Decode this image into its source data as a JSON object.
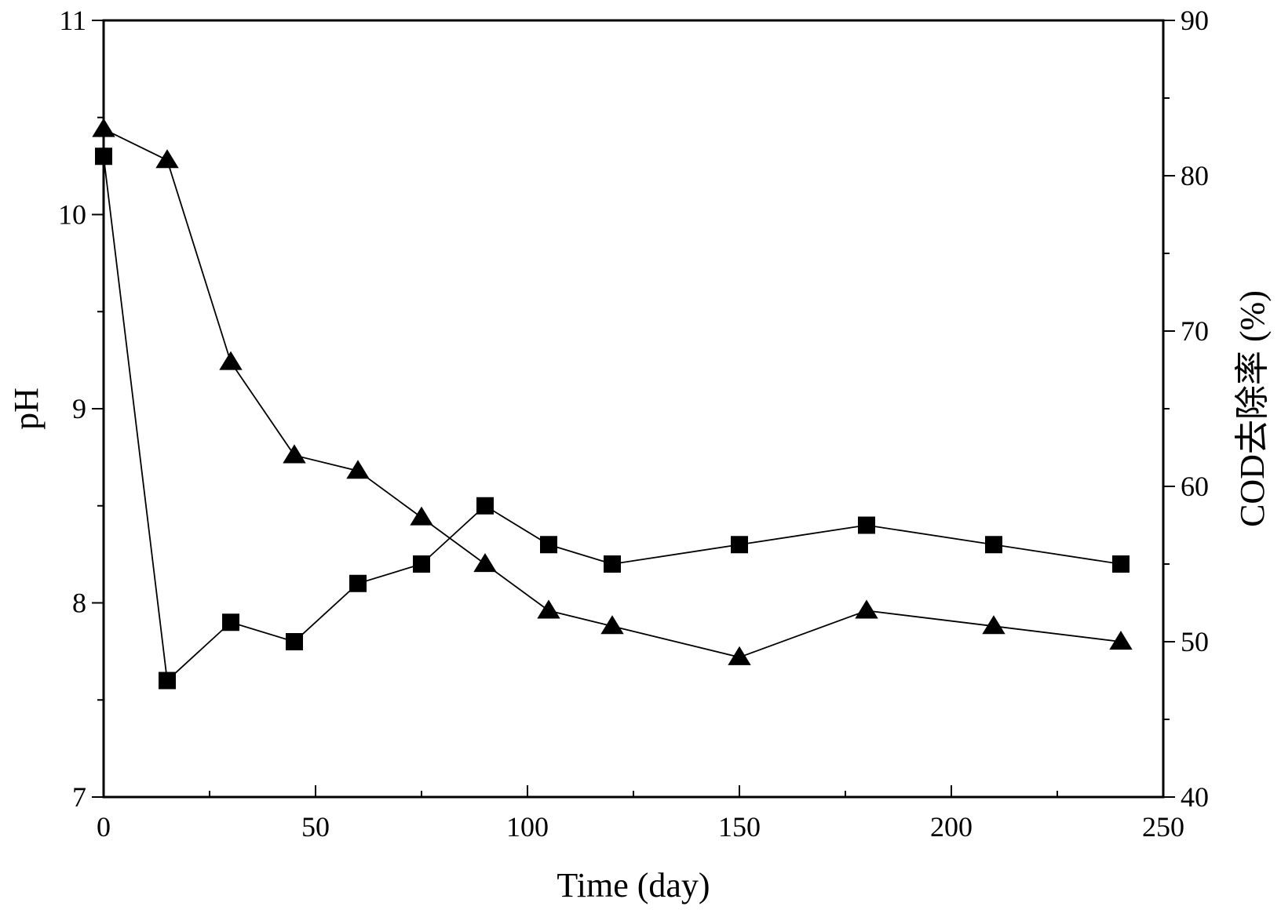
{
  "chart_data": {
    "type": "line",
    "title": "",
    "xlabel": "Time (day)",
    "ylabel_left": "pH",
    "ylabel_right": "COD去除率 (%)",
    "xlim": [
      0,
      250
    ],
    "ylim_left": [
      7,
      11
    ],
    "ylim_right": [
      40,
      90
    ],
    "x_ticks": [
      0,
      50,
      100,
      150,
      200,
      250
    ],
    "y_left_ticks": [
      7,
      8,
      9,
      10,
      11
    ],
    "y_right_ticks": [
      40,
      50,
      60,
      70,
      80,
      90
    ],
    "grid": false,
    "legend": "none",
    "series": [
      {
        "marker": "square",
        "axis": "left",
        "color": "#000000",
        "x": [
          0,
          15,
          30,
          45,
          60,
          75,
          90,
          105,
          120,
          150,
          180,
          210,
          240
        ],
        "values": [
          10.3,
          7.6,
          7.9,
          7.8,
          8.1,
          8.2,
          8.5,
          8.3,
          8.2,
          8.3,
          8.4,
          8.3,
          8.2
        ]
      },
      {
        "marker": "triangle",
        "axis": "right",
        "color": "#000000",
        "x": [
          0,
          15,
          30,
          45,
          60,
          75,
          90,
          105,
          120,
          150,
          180,
          210,
          240
        ],
        "values": [
          83,
          81,
          68,
          62,
          61,
          58,
          55,
          52,
          51,
          49,
          52,
          51,
          50
        ]
      }
    ]
  }
}
